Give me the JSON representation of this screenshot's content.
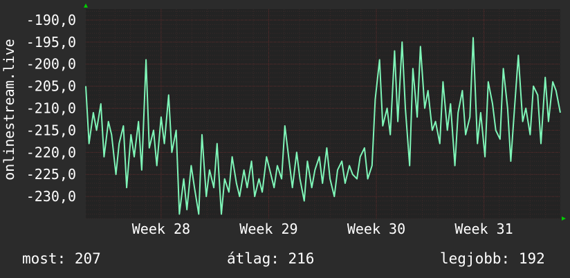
{
  "colors": {
    "background": "#2b2b2b",
    "plot": "#232323",
    "line": "#7ff6b8",
    "text": "#ffffff",
    "grid_major": "#5a2a2a",
    "grid_minor": "#3a2a2a",
    "arrow": "#00cc00"
  },
  "chart_data": {
    "type": "line",
    "ylabel": "onlinestream.live",
    "yticks": [
      -190.0,
      -195.0,
      -200.0,
      -205.0,
      -210.0,
      -215.0,
      -220.0,
      -225.0,
      -230.0
    ],
    "ytick_labels": [
      "-190,0",
      "-195,0",
      "-200,0",
      "-205,0",
      "-210,0",
      "-215,0",
      "-220,0",
      "-225,0",
      "-230,0"
    ],
    "ylim": [
      -235.0,
      -187.5
    ],
    "xlim": [
      27.3,
      31.71
    ],
    "xticks": [
      28,
      29,
      30,
      31
    ],
    "xtick_labels": [
      "Week 28",
      "Week 29",
      "Week 30",
      "Week 31"
    ],
    "grid": true,
    "series": [
      {
        "x": [
          27.3,
          27.33,
          27.37,
          27.4,
          27.44,
          27.47,
          27.51,
          27.54,
          27.58,
          27.61,
          27.65,
          27.68,
          27.72,
          27.75,
          27.79,
          27.82,
          27.86,
          27.89,
          27.93,
          27.96,
          28.0,
          28.03,
          28.07,
          28.1,
          28.14,
          28.17,
          28.21,
          28.24,
          28.28,
          28.31,
          28.35,
          28.38,
          28.42,
          28.45,
          28.49,
          28.52,
          28.56,
          28.59,
          28.63,
          28.66,
          28.7,
          28.73,
          28.77,
          28.8,
          28.84,
          28.87,
          28.91,
          28.94,
          28.98,
          29.01,
          29.05,
          29.08,
          29.12,
          29.15,
          29.19,
          29.22,
          29.26,
          29.29,
          29.33,
          29.36,
          29.4,
          29.43,
          29.47,
          29.5,
          29.54,
          29.57,
          29.61,
          29.64,
          29.68,
          29.71,
          29.75,
          29.78,
          29.82,
          29.85,
          29.89,
          29.92,
          29.96,
          29.99,
          30.03,
          30.06,
          30.1,
          30.13,
          30.17,
          30.2,
          30.24,
          30.27,
          30.31,
          30.34,
          30.38,
          30.41,
          30.45,
          30.48,
          30.52,
          30.55,
          30.59,
          30.62,
          30.66,
          30.69,
          30.73,
          30.76,
          30.8,
          30.83,
          30.87,
          30.9,
          30.94,
          30.97,
          31.01,
          31.04,
          31.08,
          31.11,
          31.15,
          31.18,
          31.22,
          31.25,
          31.29,
          31.32,
          31.36,
          31.39,
          31.43,
          31.46,
          31.5,
          31.53,
          31.57,
          31.6,
          31.64,
          31.67,
          31.71
        ],
        "y": [
          -205,
          -218,
          -211,
          -215,
          -209,
          -221,
          -213,
          -216,
          -225,
          -218,
          -214,
          -228,
          -216,
          -221,
          -213,
          -224,
          -199,
          -219,
          -215,
          -223,
          -212,
          -218,
          -207,
          -220,
          -215,
          -234,
          -226,
          -233,
          -223,
          -228,
          -234,
          -216,
          -230,
          -224,
          -228,
          -218,
          -234,
          -226,
          -229,
          -221,
          -227,
          -230,
          -224,
          -228,
          -222,
          -230,
          -226,
          -229,
          -221,
          -224,
          -228,
          -223,
          -226,
          -214,
          -222,
          -228,
          -220,
          -226,
          -231,
          -222,
          -228,
          -224,
          -221,
          -227,
          -219,
          -226,
          -230,
          -224,
          -222,
          -227,
          -223,
          -225,
          -226,
          -221,
          -219,
          -226,
          -223,
          -208,
          -199,
          -214,
          -210,
          -216,
          -197,
          -213,
          -195,
          -210,
          -223,
          -201,
          -212,
          -196,
          -210,
          -206,
          -215,
          -213,
          -218,
          -204,
          -215,
          -209,
          -223,
          -211,
          -206,
          -216,
          -212,
          -194,
          -218,
          -211,
          -221,
          -204,
          -209,
          -215,
          -217,
          -201,
          -210,
          -222,
          -208,
          -198,
          -213,
          -210,
          -216,
          -205,
          -207,
          -218,
          -203,
          -213,
          -204,
          -206,
          -211
        ]
      }
    ],
    "stats": [
      {
        "label": "most:",
        "value": "207"
      },
      {
        "label": "átlag:",
        "value": "216"
      },
      {
        "label": "legjobb:",
        "value": "192"
      }
    ]
  }
}
